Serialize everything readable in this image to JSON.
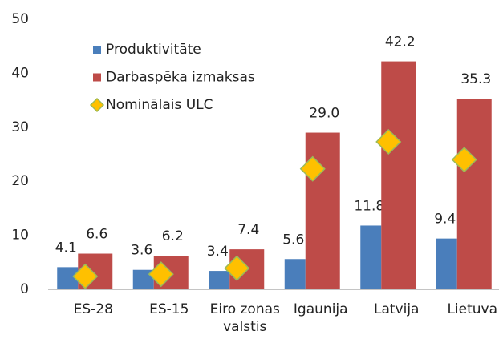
{
  "chart_data": {
    "type": "bar",
    "categories": [
      "ES-28",
      "ES-15",
      "Eiro zonas valstis",
      "Igaunija",
      "Latvija",
      "Lietuva"
    ],
    "series": [
      {
        "name": "Produktivitāte",
        "color": "#4a7ebb",
        "values": [
          4.1,
          3.6,
          3.4,
          5.6,
          11.8,
          9.4
        ]
      },
      {
        "name": "Darbaspēka izmaksas",
        "color": "#be4b48",
        "values": [
          6.6,
          6.2,
          7.4,
          29.0,
          42.2,
          35.3
        ],
        "value_labels": [
          "6.6",
          "6.2",
          "7.4",
          "29.0",
          "42.2",
          "35.3"
        ]
      },
      {
        "name": "Nominālais ULC",
        "color": "#ffc000",
        "marker": "diamond",
        "values": [
          2.4,
          2.8,
          3.9,
          22.3,
          27.3,
          24.0
        ]
      }
    ],
    "ylim": [
      0,
      50
    ],
    "yticks": [
      0,
      10,
      20,
      30,
      40,
      50
    ],
    "grid": false,
    "legend": "upper left"
  }
}
